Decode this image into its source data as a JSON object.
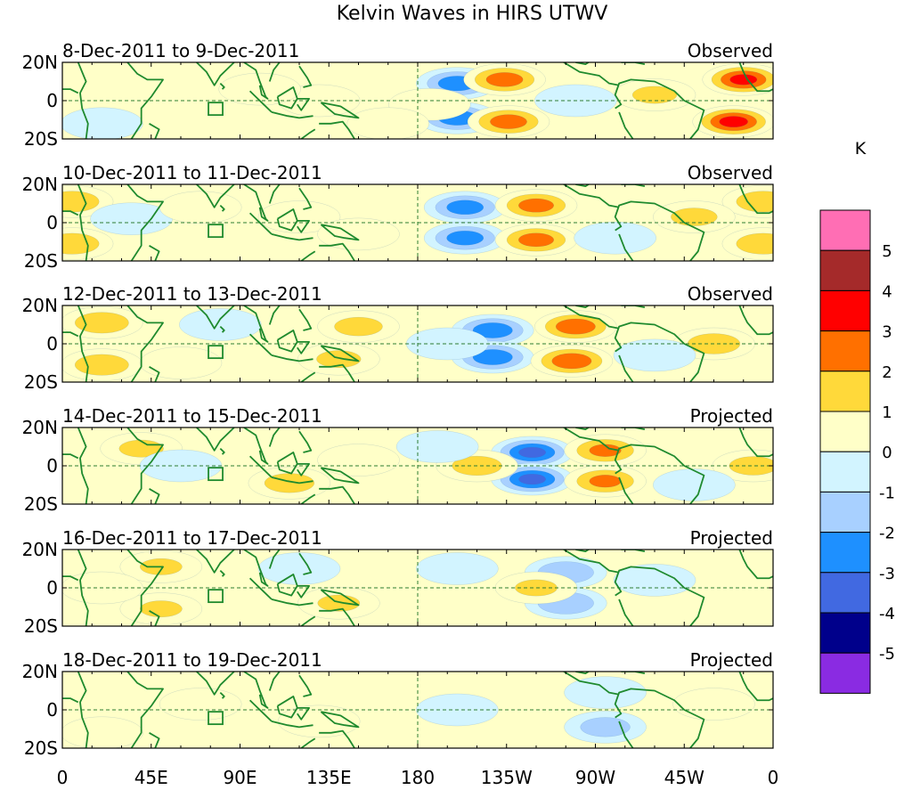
{
  "chart_data": {
    "type": "heatmap",
    "title": "Kelvin Waves in HIRS UTWV",
    "lat_ticks": [
      "20N",
      "0",
      "20S"
    ],
    "lon_ticks": [
      "0",
      "45E",
      "90E",
      "135E",
      "180",
      "135W",
      "90W",
      "45W",
      "0"
    ],
    "lon_values": [
      0,
      45,
      90,
      135,
      180,
      225,
      270,
      315,
      360
    ],
    "lat_range": [
      -20,
      20
    ],
    "lon_range": [
      0,
      360
    ],
    "colorbar": {
      "unit": "K",
      "labels": [
        "5",
        "4",
        "3",
        "2",
        "1",
        "0",
        "-1",
        "-2",
        "-3",
        "-4",
        "-5"
      ],
      "colors": [
        "#ff6eb4",
        "#a52a2a",
        "#ff0000",
        "#ff7000",
        "#ffd93a",
        "#ffffc8",
        "#d2f4ff",
        "#a8d0ff",
        "#1e90ff",
        "#4169e1",
        "#00008b",
        "#8a2be2"
      ],
      "thresholds": [
        -5,
        -4,
        -3,
        -2,
        -1,
        0,
        1,
        2,
        3,
        4,
        5
      ]
    },
    "panels": [
      {
        "date_range": "8-Dec-2011 to 9-Dec-2011",
        "status": "Observed",
        "features": [
          {
            "lon": 200,
            "lat": 9,
            "value": -2.5
          },
          {
            "lon": 200,
            "lat": -9,
            "value": -2.5
          },
          {
            "lon": 224,
            "lat": 11,
            "value": 2.4
          },
          {
            "lon": 226,
            "lat": -11,
            "value": 2.4
          },
          {
            "lon": 186,
            "lat": -2,
            "value": 1.0
          },
          {
            "lon": 345,
            "lat": 11,
            "value": 3.1
          },
          {
            "lon": 340,
            "lat": -11,
            "value": 3.2
          },
          {
            "lon": 130,
            "lat": 0,
            "value": 1.0
          },
          {
            "lon": 300,
            "lat": 3,
            "value": 1.2
          },
          {
            "lon": 20,
            "lat": -12,
            "value": -1.0
          },
          {
            "lon": 260,
            "lat": 0,
            "value": -0.6
          },
          {
            "lon": 100,
            "lat": 6,
            "value": 0.6
          },
          {
            "lon": 165,
            "lat": -12,
            "value": 0.8
          }
        ]
      },
      {
        "date_range": "10-Dec-2011 to 11-Dec-2011",
        "status": "Observed",
        "features": [
          {
            "lon": 204,
            "lat": 8,
            "value": -2.4
          },
          {
            "lon": 204,
            "lat": -8,
            "value": -2.4
          },
          {
            "lon": 240,
            "lat": 9,
            "value": 2.3
          },
          {
            "lon": 240,
            "lat": -9,
            "value": 2.3
          },
          {
            "lon": 5,
            "lat": 11,
            "value": 1.8
          },
          {
            "lon": 5,
            "lat": -11,
            "value": 1.8
          },
          {
            "lon": 355,
            "lat": 11,
            "value": 1.8
          },
          {
            "lon": 355,
            "lat": -11,
            "value": 1.8
          },
          {
            "lon": 320,
            "lat": 3,
            "value": 1.3
          },
          {
            "lon": 120,
            "lat": 3,
            "value": 1.0
          },
          {
            "lon": 150,
            "lat": -6,
            "value": 1.0
          },
          {
            "lon": 35,
            "lat": 2,
            "value": -0.8
          },
          {
            "lon": 70,
            "lat": 8,
            "value": 0.8
          },
          {
            "lon": 280,
            "lat": -8,
            "value": -0.8
          }
        ]
      },
      {
        "date_range": "12-Dec-2011 to 13-Dec-2011",
        "status": "Observed",
        "features": [
          {
            "lon": 218,
            "lat": 7,
            "value": -2.6
          },
          {
            "lon": 218,
            "lat": -7,
            "value": -2.6
          },
          {
            "lon": 260,
            "lat": 9,
            "value": 2.6
          },
          {
            "lon": 258,
            "lat": -9,
            "value": 2.6
          },
          {
            "lon": 20,
            "lat": 11,
            "value": 1.8
          },
          {
            "lon": 20,
            "lat": -11,
            "value": 1.8
          },
          {
            "lon": 150,
            "lat": 9,
            "value": 1.4
          },
          {
            "lon": 140,
            "lat": -8,
            "value": 1.2
          },
          {
            "lon": 330,
            "lat": 0,
            "value": 1.7
          },
          {
            "lon": 80,
            "lat": 10,
            "value": -1.0
          },
          {
            "lon": 195,
            "lat": 0,
            "value": -0.8
          },
          {
            "lon": 60,
            "lat": -10,
            "value": 0.8
          },
          {
            "lon": 300,
            "lat": -6,
            "value": -0.8
          }
        ]
      },
      {
        "date_range": "14-Dec-2011 to 15-Dec-2011",
        "status": "Projected",
        "features": [
          {
            "lon": 238,
            "lat": 7,
            "value": -3.1
          },
          {
            "lon": 238,
            "lat": -7,
            "value": -3.1
          },
          {
            "lon": 275,
            "lat": 8,
            "value": 2.1
          },
          {
            "lon": 275,
            "lat": -8,
            "value": 2.1
          },
          {
            "lon": 210,
            "lat": 0,
            "value": 1.5
          },
          {
            "lon": 40,
            "lat": 9,
            "value": 1.2
          },
          {
            "lon": 115,
            "lat": -9,
            "value": 1.5
          },
          {
            "lon": 350,
            "lat": 0,
            "value": 1.4
          },
          {
            "lon": 190,
            "lat": 10,
            "value": -1.0
          },
          {
            "lon": 60,
            "lat": 0,
            "value": -0.8
          },
          {
            "lon": 150,
            "lat": 3,
            "value": 0.8
          },
          {
            "lon": 320,
            "lat": -10,
            "value": -1.0
          }
        ]
      },
      {
        "date_range": "16-Dec-2011 to 17-Dec-2011",
        "status": "Projected",
        "features": [
          {
            "lon": 255,
            "lat": 8,
            "value": -2.0
          },
          {
            "lon": 255,
            "lat": -8,
            "value": -2.0
          },
          {
            "lon": 50,
            "lat": 11,
            "value": 1.1
          },
          {
            "lon": 50,
            "lat": -11,
            "value": 1.1
          },
          {
            "lon": 140,
            "lat": -8,
            "value": 1.1
          },
          {
            "lon": 240,
            "lat": 0,
            "value": 1.1
          },
          {
            "lon": 200,
            "lat": 10,
            "value": -0.6
          },
          {
            "lon": 300,
            "lat": 4,
            "value": -0.6
          },
          {
            "lon": 120,
            "lat": 10,
            "value": -0.5
          },
          {
            "lon": 20,
            "lat": 0,
            "value": 0.6
          }
        ]
      },
      {
        "date_range": "18-Dec-2011 to 19-Dec-2011",
        "status": "Projected",
        "features": [
          {
            "lon": 275,
            "lat": -9,
            "value": -1.5
          },
          {
            "lon": 275,
            "lat": 9,
            "value": -0.9
          },
          {
            "lon": 130,
            "lat": -6,
            "value": 0.6
          },
          {
            "lon": 70,
            "lat": 3,
            "value": 0.6
          },
          {
            "lon": 200,
            "lat": 0,
            "value": -0.6
          },
          {
            "lon": 20,
            "lat": -12,
            "value": 0.6
          },
          {
            "lon": 330,
            "lat": 3,
            "value": 0.5
          }
        ]
      }
    ]
  }
}
